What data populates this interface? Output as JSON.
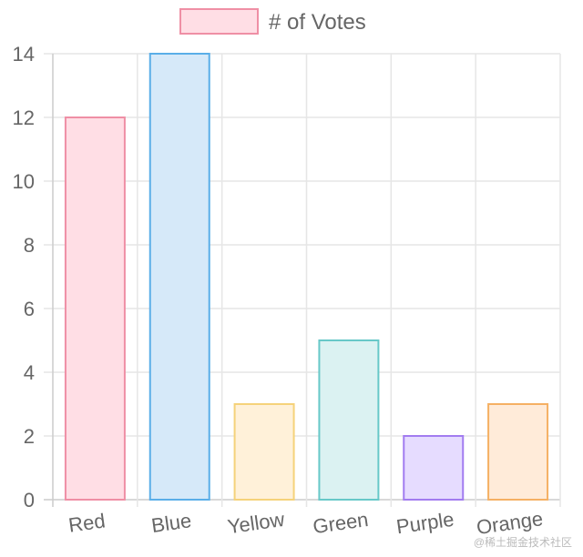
{
  "chart_data": {
    "type": "bar",
    "categories": [
      "Red",
      "Blue",
      "Yellow",
      "Green",
      "Purple",
      "Orange"
    ],
    "series": [
      {
        "name": "# of Votes",
        "values": [
          12,
          14,
          3,
          5,
          2,
          3
        ],
        "fill_colors": [
          "#ffdee5",
          "#d6e9f9",
          "#fff1d9",
          "#dbf2f2",
          "#e6dcff",
          "#ffebd9"
        ],
        "border_colors": [
          "#ef8fa5",
          "#5aaee8",
          "#f5d27a",
          "#67c8c8",
          "#a27cf0",
          "#f5b063"
        ]
      }
    ],
    "ylim": [
      0,
      14
    ],
    "yticks": [
      0,
      2,
      4,
      6,
      8,
      10,
      12,
      14
    ],
    "legend": {
      "position": "top",
      "label": "# of Votes"
    },
    "grid": true,
    "x_label_rotation_deg": -8
  },
  "watermark": "@稀土掘金技术社区"
}
